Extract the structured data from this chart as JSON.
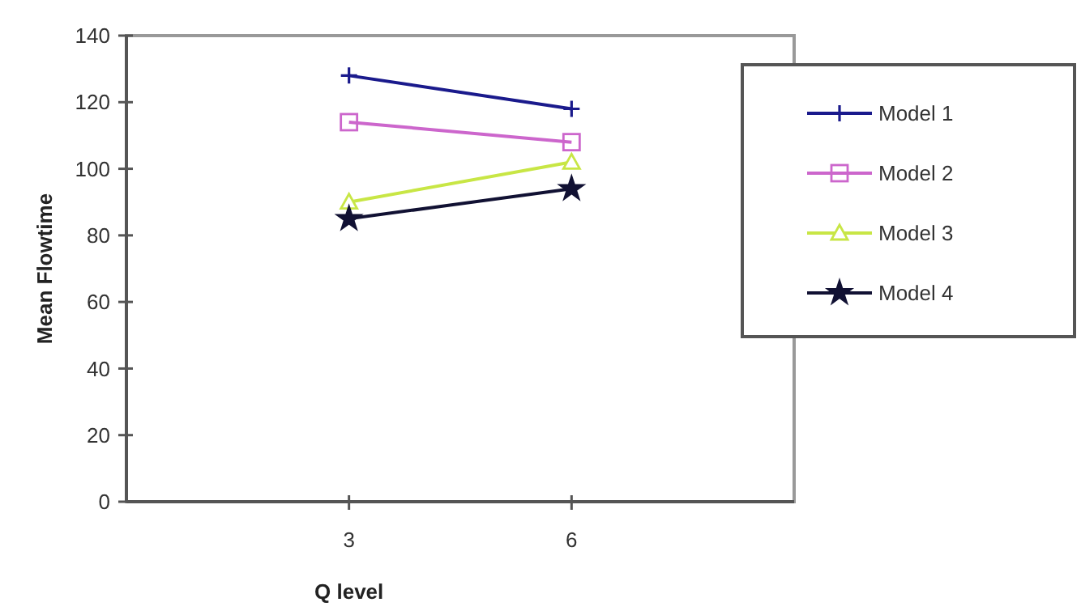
{
  "chart_data": {
    "type": "line",
    "xlabel": "Q level",
    "ylabel": "Mean Flowtime",
    "x": [
      3,
      6
    ],
    "xlim": [
      0,
      9
    ],
    "xticks": [
      3,
      6
    ],
    "ylim": [
      0,
      140
    ],
    "yticks": [
      0,
      20,
      40,
      60,
      80,
      100,
      120,
      140
    ],
    "grid": false,
    "legend": "right",
    "series": [
      {
        "name": "Model 1",
        "color": "#1a1a8c",
        "marker": "cross",
        "values": [
          128,
          118
        ]
      },
      {
        "name": "Model 2",
        "color": "#cc66cc",
        "marker": "square",
        "values": [
          114,
          108
        ]
      },
      {
        "name": "Model 3",
        "color": "#c8e645",
        "marker": "triangle",
        "values": [
          90,
          102
        ]
      },
      {
        "name": "Model 4",
        "color": "#111133",
        "marker": "star",
        "values": [
          85,
          94
        ]
      }
    ]
  }
}
